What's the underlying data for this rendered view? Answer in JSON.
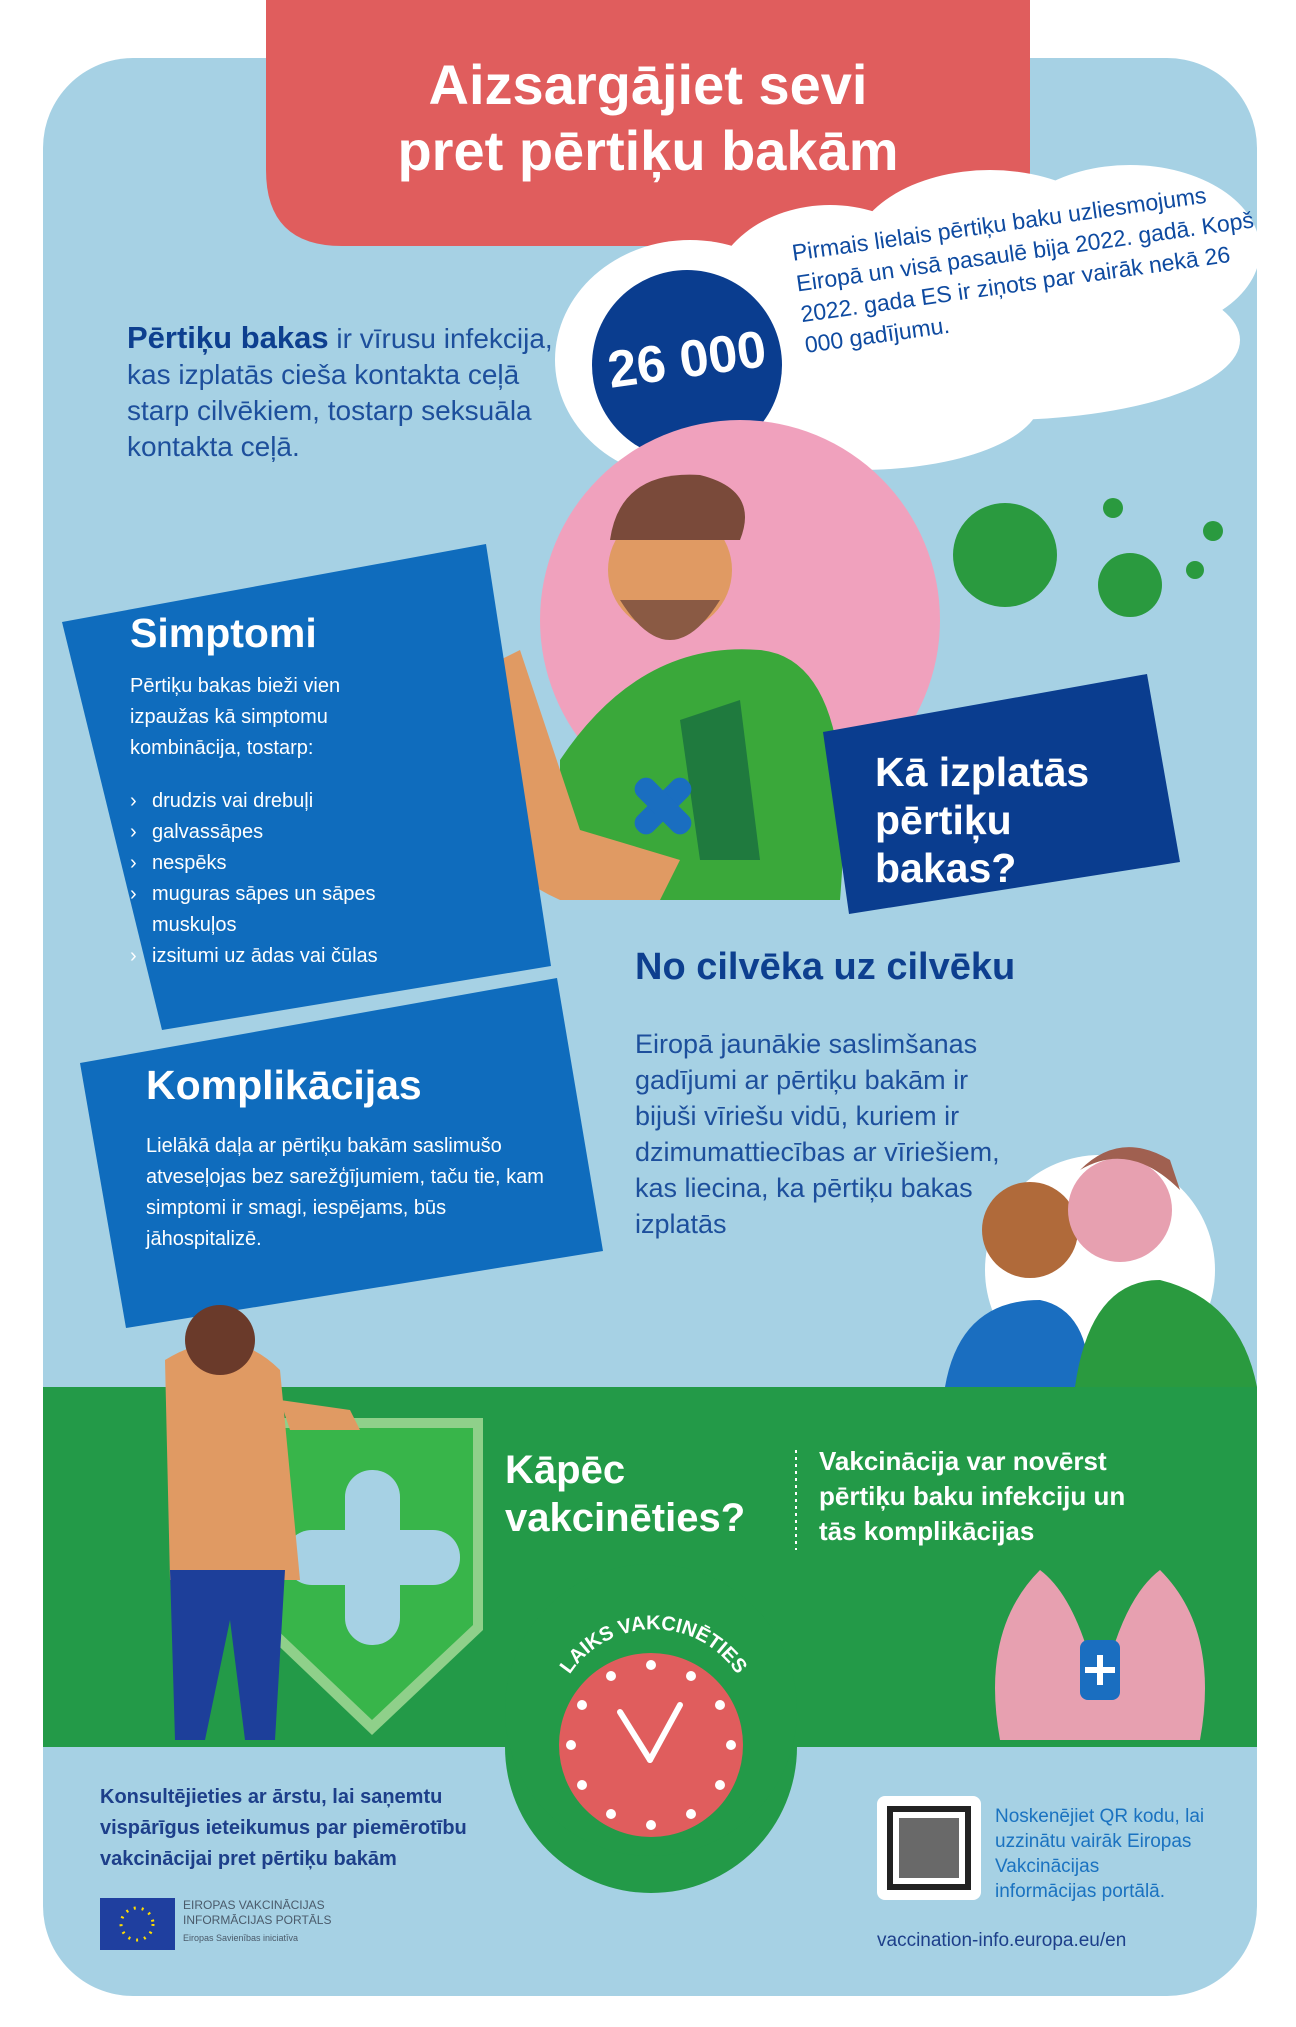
{
  "header": {
    "title_line1": "Aizsargājiet sevi",
    "title_line2": "pret pērtiķu bakām"
  },
  "intro": {
    "bold": "Pērtiķu bakas",
    "text": " ir vīrusu infekcija, kas izplatās cieša kontakta ceļā starp cilvēkiem, tostarp seksuāla kontakta ceļā."
  },
  "stat": {
    "number": "26 000",
    "text": "Pirmais lielais pērtiķu baku uzliesmojums Eiropā un visā pasaulē bija 2022. gadā. Kopš 2022. gada ES ir ziņots par vairāk nekā 26 000 gadījumu."
  },
  "symptoms": {
    "title": "Simptomi",
    "intro": "Pērtiķu bakas bieži vien izpaužas kā simptomu kombinācija, tostarp:",
    "items": [
      "drudzis vai drebuļi",
      "galvassāpes",
      "nespēks",
      "muguras sāpes un sāpes muskuļos",
      "izsitumi uz ādas vai čūlas"
    ]
  },
  "complications": {
    "title": "Komplikācijas",
    "text": "Lielākā daļa ar pērtiķu bakām saslimušo atveseļojas bez sarežģījumiem, taču tie, kam simptomi ir smagi, iespējams, būs jāhospitalizē."
  },
  "spread": {
    "title": "Kā izplatās pērtiķu bakas?",
    "heading": "No cilvēka uz cilvēku",
    "text": "Eiropā jaunākie saslimšanas gadījumi ar pērtiķu bakām ir bijuši vīriešu vidū, kuriem ir dzimumattiecības ar vīriešiem, kas liecina, ka pērtiķu bakas izplatās"
  },
  "vaccination": {
    "question": "Kāpēc vakcinēties?",
    "answer": "Vakcinācija var novērst pērtiķu baku infekciju un tās komplikācijas",
    "clock_label": "LAIKS VAKCINĒTIES"
  },
  "footer": {
    "consult": "Konsultējieties ar ārstu, lai saņemtu vispārīgus ieteikumus par piemērotību vakcinācijai pret pērtiķu bakām",
    "logo_line1": "EIROPAS VAKCINĀCIJAS",
    "logo_line2": "INFORMĀCIJAS PORTĀLS",
    "logo_line3": "Eiropas Savienības iniciatīva",
    "qr_text": "Noskenējiet QR kodu, lai uzzinātu vairāk Eiropas Vakcinācijas informācijas portālā.",
    "url": "vaccination-info.europa.eu/en"
  },
  "colors": {
    "background": "#a6d1e4",
    "title_red": "#e05d5d",
    "card_blue": "#0f6cbd",
    "dark_blue": "#0a3d8f",
    "green": "#239a48"
  }
}
